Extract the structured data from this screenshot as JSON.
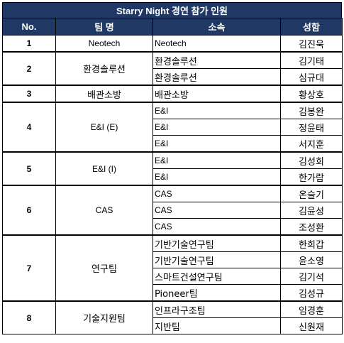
{
  "title": "Starry Night 경연 참가 인원",
  "headers": {
    "no": "No.",
    "team": "팀 명",
    "org": "소속",
    "name": "성함"
  },
  "groups": [
    {
      "no": "1",
      "team": "Neotech",
      "members": [
        {
          "org": "Neotech",
          "name": "김진욱"
        }
      ]
    },
    {
      "no": "2",
      "team": "환경솔루션",
      "members": [
        {
          "org": "환경솔루션",
          "name": "김기태"
        },
        {
          "org": "환경솔루션",
          "name": "심규대"
        }
      ]
    },
    {
      "no": "3",
      "team": "배관소방",
      "members": [
        {
          "org": "배관소방",
          "name": "황상호"
        }
      ]
    },
    {
      "no": "4",
      "team": "E&I (E)",
      "members": [
        {
          "org": "E&I",
          "name": "김봉완"
        },
        {
          "org": "E&I",
          "name": "정윤태"
        },
        {
          "org": "E&I",
          "name": "서지훈"
        }
      ]
    },
    {
      "no": "5",
      "team": "E&I (I)",
      "members": [
        {
          "org": "E&I",
          "name": "김성희"
        },
        {
          "org": "E&I",
          "name": "한가람"
        }
      ]
    },
    {
      "no": "6",
      "team": "CAS",
      "members": [
        {
          "org": "CAS",
          "name": "온슬기"
        },
        {
          "org": "CAS",
          "name": "김윤성"
        },
        {
          "org": "CAS",
          "name": "조성환"
        }
      ]
    },
    {
      "no": "7",
      "team": "연구팀",
      "members": [
        {
          "org": "기반기술연구팀",
          "name": "한희갑"
        },
        {
          "org": "기반기술연구팀",
          "name": "윤소영"
        },
        {
          "org": "스마트건설연구팀",
          "name": "김기석"
        },
        {
          "org": "Pioneer팀",
          "name": "김성규"
        }
      ]
    },
    {
      "no": "8",
      "team": "기술지원팀",
      "members": [
        {
          "org": "인프라구조팀",
          "name": "임경훈"
        },
        {
          "org": "지반팀",
          "name": "신원재"
        }
      ]
    }
  ],
  "colors": {
    "header_bg": "#1f3864",
    "header_text": "#ffffff"
  }
}
